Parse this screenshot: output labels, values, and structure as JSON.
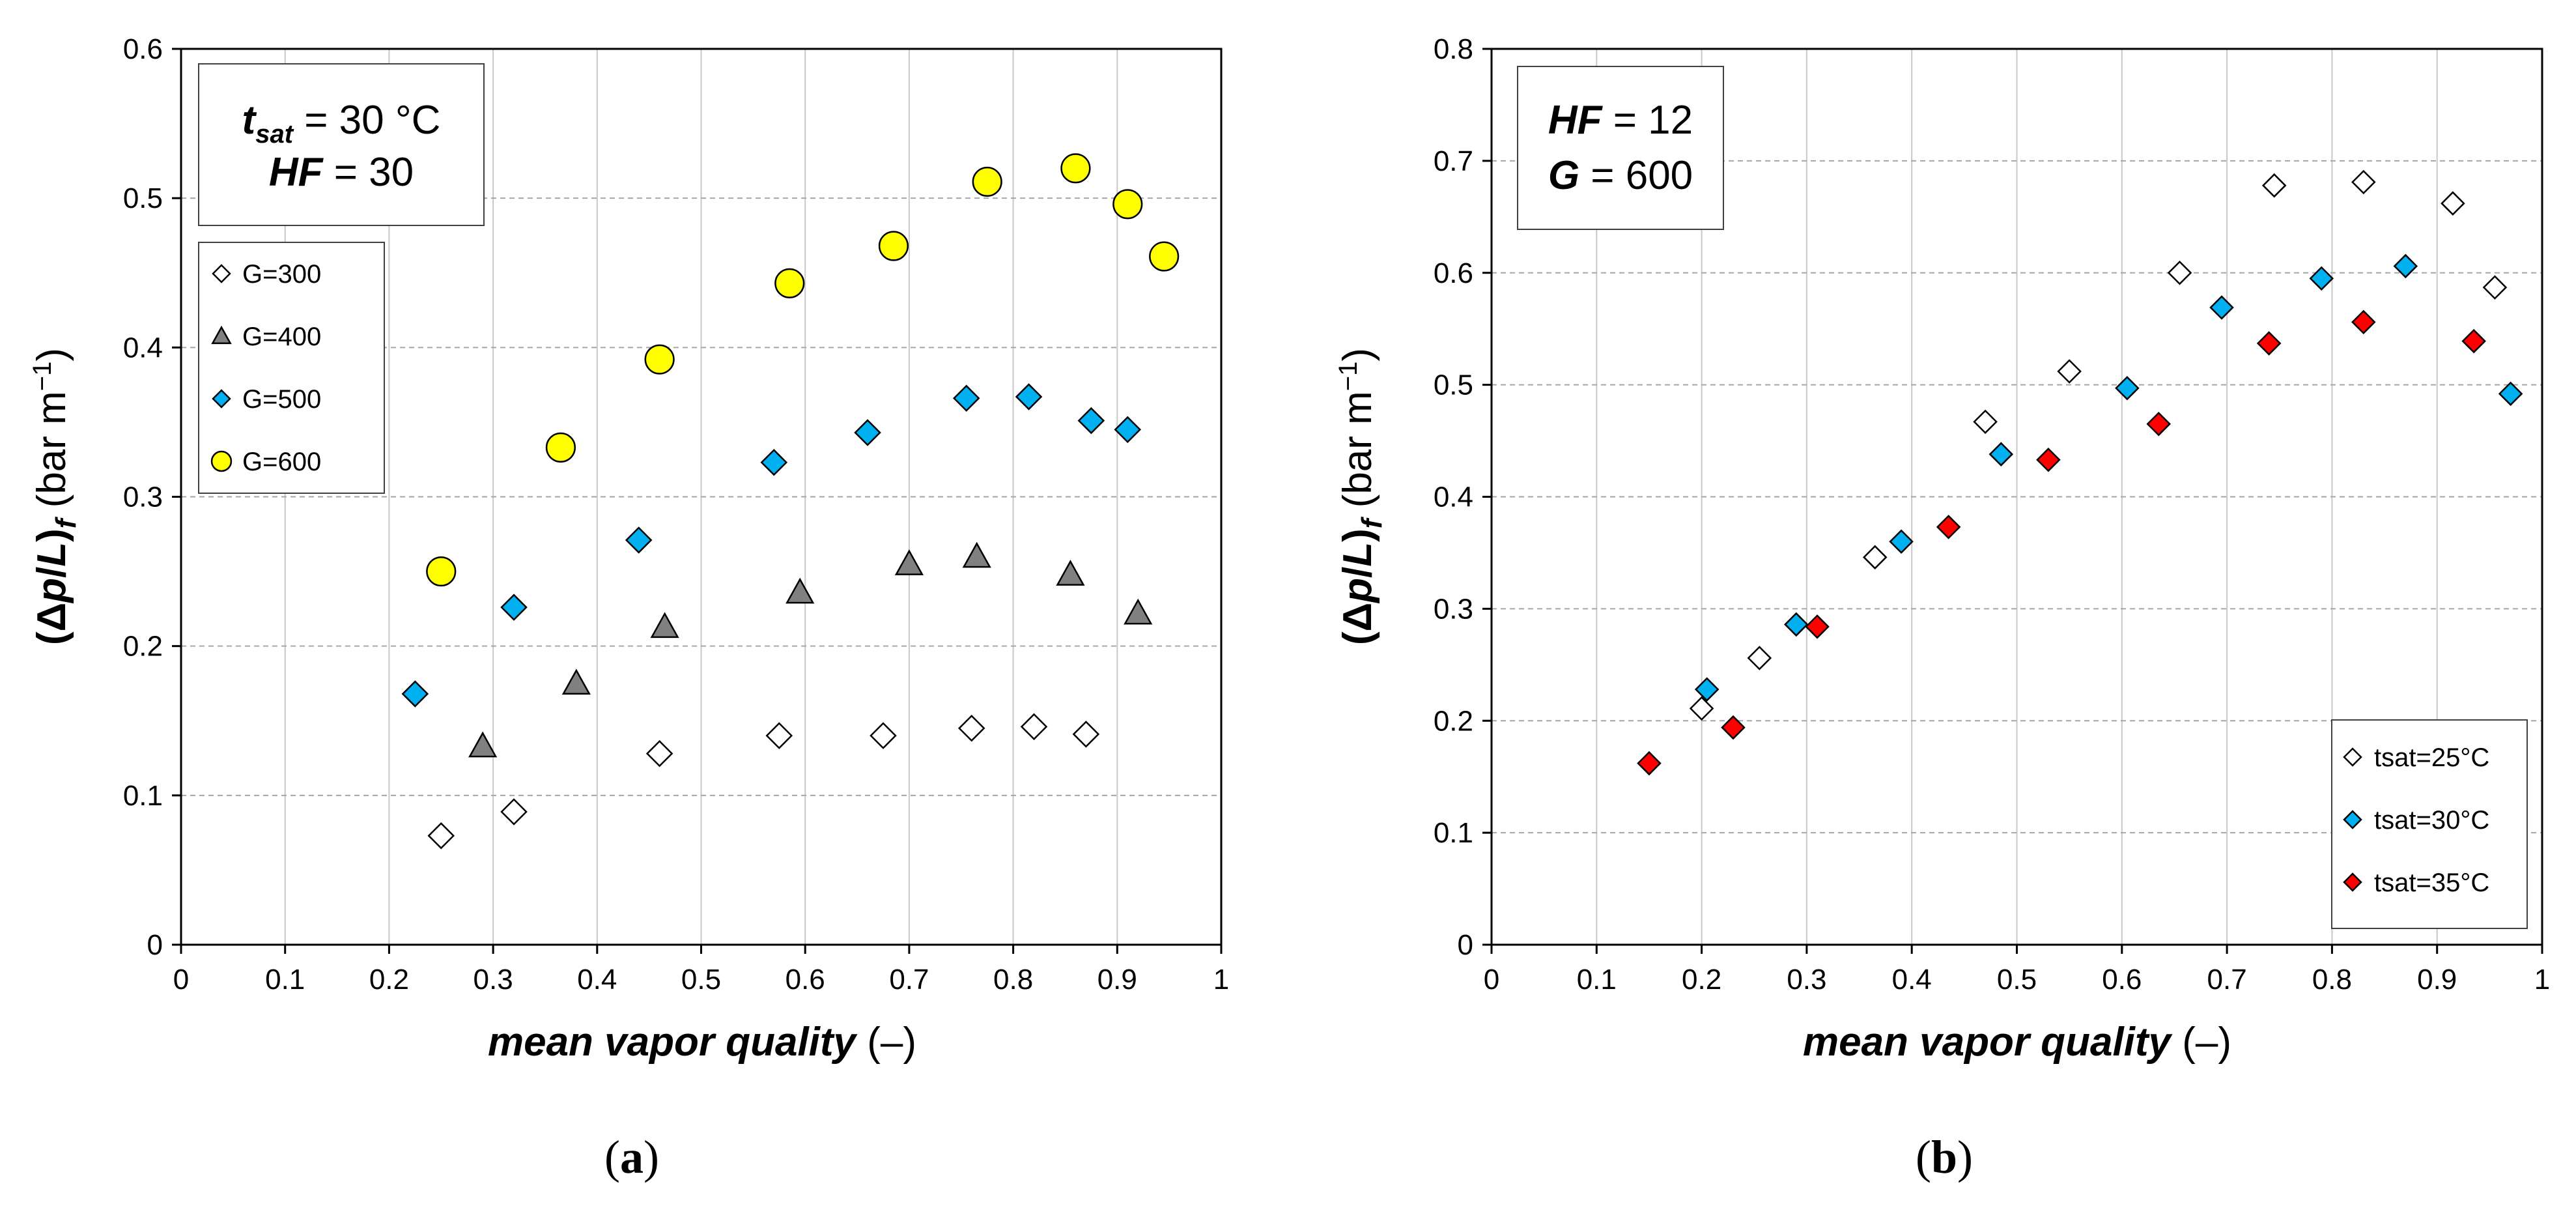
{
  "chart_data": [
    {
      "type": "scatter",
      "panel_label": "(a)",
      "xlabel": "mean vapor quality (–)",
      "ylabel": "(Δp/L)f (bar m−1)",
      "xlim": [
        0,
        1
      ],
      "ylim": [
        0,
        0.6
      ],
      "x_ticks": [
        "0",
        "0.1",
        "0.2",
        "0.3",
        "0.4",
        "0.5",
        "0.6",
        "0.7",
        "0.8",
        "0.9",
        "1"
      ],
      "y_ticks": [
        "0",
        "0.1",
        "0.2",
        "0.3",
        "0.4",
        "0.5",
        "0.6"
      ],
      "info_box": {
        "line1": {
          "var": "t",
          "sub": "sat",
          "rest": " = 30 °C"
        },
        "line2": {
          "var": "HF",
          "rest": " = 30"
        }
      },
      "legend_position": "left",
      "series": [
        {
          "name": "G=300",
          "marker": "diamond",
          "color": "#ffffff",
          "points": [
            [
              0.25,
              0.073
            ],
            [
              0.32,
              0.089
            ],
            [
              0.46,
              0.128
            ],
            [
              0.575,
              0.14
            ],
            [
              0.675,
              0.14
            ],
            [
              0.76,
              0.145
            ],
            [
              0.82,
              0.146
            ],
            [
              0.87,
              0.141
            ]
          ]
        },
        {
          "name": "G=400",
          "marker": "triangle",
          "color": "#808080",
          "points": [
            [
              0.29,
              0.133
            ],
            [
              0.38,
              0.175
            ],
            [
              0.465,
              0.213
            ],
            [
              0.595,
              0.236
            ],
            [
              0.7,
              0.255
            ],
            [
              0.765,
              0.26
            ],
            [
              0.855,
              0.248
            ],
            [
              0.92,
              0.222
            ]
          ]
        },
        {
          "name": "G=500",
          "marker": "diamond",
          "color": "#00b0f0",
          "points": [
            [
              0.225,
              0.168
            ],
            [
              0.32,
              0.226
            ],
            [
              0.44,
              0.271
            ],
            [
              0.57,
              0.323
            ],
            [
              0.66,
              0.343
            ],
            [
              0.755,
              0.366
            ],
            [
              0.815,
              0.367
            ],
            [
              0.875,
              0.351
            ],
            [
              0.91,
              0.345
            ]
          ]
        },
        {
          "name": "G=600",
          "marker": "circle",
          "color": "#ffff00",
          "points": [
            [
              0.25,
              0.25
            ],
            [
              0.365,
              0.333
            ],
            [
              0.46,
              0.392
            ],
            [
              0.585,
              0.443
            ],
            [
              0.685,
              0.468
            ],
            [
              0.775,
              0.511
            ],
            [
              0.86,
              0.52
            ],
            [
              0.91,
              0.496
            ],
            [
              0.945,
              0.461
            ]
          ]
        }
      ]
    },
    {
      "type": "scatter",
      "panel_label": "(b)",
      "xlabel": "mean vapor quality (–)",
      "ylabel": "(Δp/L)f (bar m−1)",
      "xlim": [
        0,
        1
      ],
      "ylim": [
        0,
        0.8
      ],
      "x_ticks": [
        "0",
        "0.1",
        "0.2",
        "0.3",
        "0.4",
        "0.5",
        "0.6",
        "0.7",
        "0.8",
        "0.9",
        "1"
      ],
      "y_ticks": [
        "0",
        "0.1",
        "0.2",
        "0.3",
        "0.4",
        "0.5",
        "0.6",
        "0.7",
        "0.8"
      ],
      "info_box": {
        "line1": {
          "var": "HF",
          "rest": " = 12"
        },
        "line2": {
          "var": "G",
          "rest": " = 600"
        }
      },
      "legend_position": "bottom-right",
      "series": [
        {
          "name": "tsat=25°C",
          "marker": "diamond",
          "color": "#ffffff",
          "points": [
            [
              0.2,
              0.211
            ],
            [
              0.255,
              0.256
            ],
            [
              0.365,
              0.346
            ],
            [
              0.47,
              0.467
            ],
            [
              0.55,
              0.512
            ],
            [
              0.655,
              0.6
            ],
            [
              0.745,
              0.678
            ],
            [
              0.83,
              0.681
            ],
            [
              0.915,
              0.662
            ],
            [
              0.955,
              0.587
            ]
          ]
        },
        {
          "name": "tsat=30°C",
          "marker": "diamond",
          "color": "#00b0f0",
          "points": [
            [
              0.205,
              0.228
            ],
            [
              0.29,
              0.286
            ],
            [
              0.39,
              0.36
            ],
            [
              0.485,
              0.438
            ],
            [
              0.605,
              0.497
            ],
            [
              0.695,
              0.569
            ],
            [
              0.79,
              0.595
            ],
            [
              0.87,
              0.606
            ],
            [
              0.97,
              0.492
            ]
          ]
        },
        {
          "name": "tsat=35°C",
          "marker": "diamond",
          "color": "#ff0000",
          "points": [
            [
              0.15,
              0.162
            ],
            [
              0.23,
              0.194
            ],
            [
              0.31,
              0.284
            ],
            [
              0.435,
              0.373
            ],
            [
              0.53,
              0.433
            ],
            [
              0.635,
              0.465
            ],
            [
              0.74,
              0.537
            ],
            [
              0.83,
              0.556
            ],
            [
              0.935,
              0.539
            ]
          ]
        }
      ]
    }
  ]
}
